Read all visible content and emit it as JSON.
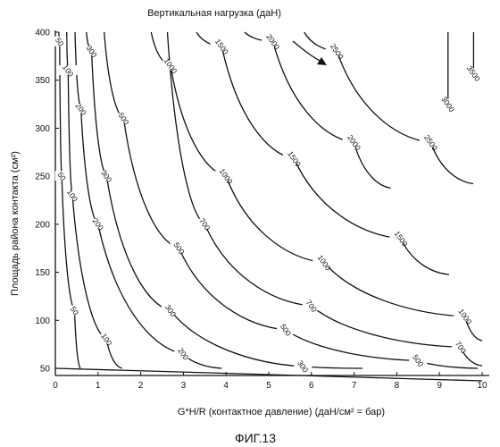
{
  "chart_data": {
    "type": "line",
    "title": "Вертикальная нагрузка (даН)",
    "xlabel": "G*H/R (контактное давление) (даН/см² = бар)",
    "ylabel": "Площадь района контакта (см²)",
    "xlim": [
      0,
      10
    ],
    "ylim": [
      50,
      400
    ],
    "x_ticks": [
      "0",
      "1",
      "2",
      "3",
      "4",
      "5",
      "6",
      "7",
      "8",
      "9",
      "10"
    ],
    "y_ticks": [
      "50",
      "100",
      "150",
      "200",
      "250",
      "300",
      "350",
      "400"
    ],
    "grid": false,
    "legend": "none",
    "description_of_series": "Isolines of vertical load = pressure × area",
    "series": [
      {
        "name": "50",
        "label_positions": [
          {
            "x": 0.1,
            "y": 390
          },
          {
            "x": 0.15,
            "y": 250
          },
          {
            "x": 0.45,
            "y": 110
          }
        ]
      },
      {
        "name": "100",
        "label_positions": [
          {
            "x": 0.3,
            "y": 360
          },
          {
            "x": 0.4,
            "y": 230
          },
          {
            "x": 1.2,
            "y": 80
          }
        ]
      },
      {
        "name": "200",
        "label_positions": [
          {
            "x": 0.6,
            "y": 320
          },
          {
            "x": 1.0,
            "y": 200
          },
          {
            "x": 3.0,
            "y": 65
          }
        ]
      },
      {
        "name": "300",
        "label_positions": [
          {
            "x": 0.85,
            "y": 380
          },
          {
            "x": 1.2,
            "y": 250
          },
          {
            "x": 2.7,
            "y": 110
          },
          {
            "x": 5.8,
            "y": 52
          }
        ]
      },
      {
        "name": "500",
        "label_positions": [
          {
            "x": 1.6,
            "y": 310
          },
          {
            "x": 2.9,
            "y": 175
          },
          {
            "x": 5.4,
            "y": 90
          },
          {
            "x": 8.5,
            "y": 58
          }
        ]
      },
      {
        "name": "700",
        "label_positions": [
          {
            "x": 3.5,
            "y": 200
          },
          {
            "x": 6.0,
            "y": 115
          },
          {
            "x": 9.5,
            "y": 72
          }
        ]
      },
      {
        "name": "1000",
        "label_positions": [
          {
            "x": 2.7,
            "y": 365
          },
          {
            "x": 4.0,
            "y": 250
          },
          {
            "x": 6.3,
            "y": 160
          },
          {
            "x": 9.6,
            "y": 104
          }
        ]
      },
      {
        "name": "1500",
        "label_positions": [
          {
            "x": 3.9,
            "y": 385
          },
          {
            "x": 5.6,
            "y": 268
          },
          {
            "x": 8.1,
            "y": 185
          }
        ]
      },
      {
        "name": "2000",
        "label_positions": [
          {
            "x": 5.1,
            "y": 390
          },
          {
            "x": 7.0,
            "y": 285
          }
        ]
      },
      {
        "name": "2500",
        "label_positions": [
          {
            "x": 6.6,
            "y": 380
          },
          {
            "x": 8.8,
            "y": 285
          }
        ]
      },
      {
        "name": "3000",
        "label_positions": [
          {
            "x": 9.2,
            "y": 325
          }
        ]
      },
      {
        "name": "3500",
        "label_positions": [
          {
            "x": 9.8,
            "y": 357
          }
        ]
      }
    ]
  },
  "figure_caption": "ФИГ.13"
}
